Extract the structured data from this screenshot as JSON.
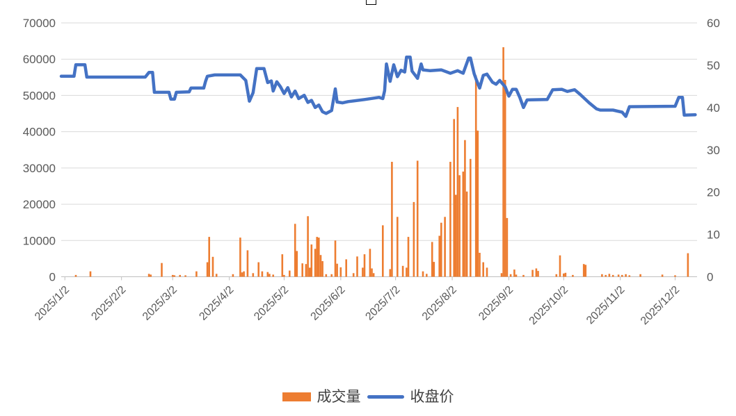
{
  "page": {
    "background": "#ffffff"
  },
  "chart_data": {
    "type": "combo-bar-line",
    "title": "",
    "grid": true,
    "legend_position": "bottom",
    "colors": {
      "bar": "#ED7D31",
      "line": "#4472C4",
      "gridline": "#D9D9D9",
      "axis_line": "#BFBFBF",
      "tick_text": "#595959",
      "legend_text": "#404040"
    },
    "legend": [
      {
        "label": "成交量",
        "type": "bar"
      },
      {
        "label": "收盘价",
        "type": "line"
      }
    ],
    "y_axis_left": {
      "min": 0,
      "max": 70000,
      "step": 10000,
      "labels": [
        "70000",
        "60000",
        "50000",
        "40000",
        "30000",
        "20000",
        "10000",
        "0"
      ]
    },
    "y_axis_right": {
      "min": 0,
      "max": 60,
      "step": 10,
      "labels": [
        "60",
        "50",
        "40",
        "30",
        "20",
        "10",
        "0"
      ]
    },
    "x_domain": [
      0,
      348
    ],
    "x_axis": {
      "ticks": [
        {
          "label": "2025/1/2",
          "day": 2
        },
        {
          "label": "2025/2/2",
          "day": 33
        },
        {
          "label": "2025/3/2",
          "day": 61
        },
        {
          "label": "2025/4/2",
          "day": 92
        },
        {
          "label": "2025/5/2",
          "day": 122
        },
        {
          "label": "2025/6/2",
          "day": 153
        },
        {
          "label": "2025/7/2",
          "day": 183
        },
        {
          "label": "2025/8/2",
          "day": 214
        },
        {
          "label": "2025/9/2",
          "day": 245
        },
        {
          "label": "2025/10/2",
          "day": 275
        },
        {
          "label": "2025/11/2",
          "day": 306
        },
        {
          "label": "2025/12/2",
          "day": 336
        }
      ]
    },
    "series": [
      {
        "name": "成交量",
        "type": "bar",
        "axis": "left",
        "points": [
          [
            8,
            500
          ],
          [
            16,
            1500
          ],
          [
            48,
            800
          ],
          [
            49,
            600
          ],
          [
            55,
            3800
          ],
          [
            61,
            500
          ],
          [
            62,
            400
          ],
          [
            65,
            500
          ],
          [
            68,
            400
          ],
          [
            74,
            1500
          ],
          [
            80,
            4000
          ],
          [
            81,
            11000
          ],
          [
            83,
            5500
          ],
          [
            85,
            800
          ],
          [
            94,
            700
          ],
          [
            98,
            10800
          ],
          [
            99,
            1200
          ],
          [
            100,
            1500
          ],
          [
            102,
            7300
          ],
          [
            105,
            1000
          ],
          [
            108,
            4000
          ],
          [
            110,
            1500
          ],
          [
            113,
            1300
          ],
          [
            114,
            800
          ],
          [
            116,
            600
          ],
          [
            121,
            6200
          ],
          [
            122,
            500
          ],
          [
            125,
            1700
          ],
          [
            128,
            14600
          ],
          [
            129,
            7100
          ],
          [
            132,
            3700
          ],
          [
            134,
            3500
          ],
          [
            135,
            16700
          ],
          [
            136,
            2500
          ],
          [
            137,
            8900
          ],
          [
            139,
            7700
          ],
          [
            140,
            11000
          ],
          [
            141,
            10800
          ],
          [
            142,
            6000
          ],
          [
            143,
            4300
          ],
          [
            145,
            700
          ],
          [
            148,
            700
          ],
          [
            150,
            10000
          ],
          [
            151,
            3600
          ],
          [
            153,
            2600
          ],
          [
            156,
            4800
          ],
          [
            160,
            1000
          ],
          [
            162,
            5600
          ],
          [
            165,
            2500
          ],
          [
            166,
            6200
          ],
          [
            169,
            7700
          ],
          [
            170,
            2300
          ],
          [
            171,
            1000
          ],
          [
            176,
            14200
          ],
          [
            180,
            2100
          ],
          [
            181,
            31700
          ],
          [
            184,
            16500
          ],
          [
            187,
            3000
          ],
          [
            189,
            2500
          ],
          [
            190,
            11000
          ],
          [
            193,
            20600
          ],
          [
            195,
            32000
          ],
          [
            198,
            1500
          ],
          [
            200,
            800
          ],
          [
            203,
            9600
          ],
          [
            204,
            4100
          ],
          [
            207,
            11300
          ],
          [
            208,
            14900
          ],
          [
            210,
            16500
          ],
          [
            213,
            31700
          ],
          [
            215,
            43500
          ],
          [
            216,
            22600
          ],
          [
            217,
            46800
          ],
          [
            218,
            28000
          ],
          [
            220,
            29000
          ],
          [
            221,
            37700
          ],
          [
            222,
            23500
          ],
          [
            224,
            32500
          ],
          [
            227,
            55500
          ],
          [
            228,
            40300
          ],
          [
            229,
            6600
          ],
          [
            231,
            4000
          ],
          [
            233,
            2500
          ],
          [
            241,
            1000
          ],
          [
            242,
            63300
          ],
          [
            243,
            54300
          ],
          [
            244,
            16200
          ],
          [
            246,
            700
          ],
          [
            248,
            2000
          ],
          [
            249,
            600
          ],
          [
            253,
            500
          ],
          [
            258,
            1900
          ],
          [
            260,
            2300
          ],
          [
            261,
            1600
          ],
          [
            271,
            700
          ],
          [
            273,
            5900
          ],
          [
            275,
            900
          ],
          [
            276,
            1100
          ],
          [
            280,
            500
          ],
          [
            286,
            3500
          ],
          [
            287,
            3300
          ],
          [
            296,
            700
          ],
          [
            298,
            500
          ],
          [
            300,
            800
          ],
          [
            302,
            500
          ],
          [
            305,
            600
          ],
          [
            307,
            500
          ],
          [
            309,
            700
          ],
          [
            311,
            400
          ],
          [
            317,
            700
          ],
          [
            329,
            600
          ],
          [
            336,
            400
          ],
          [
            343,
            6500
          ]
        ]
      },
      {
        "name": "收盘价",
        "type": "line",
        "axis": "right",
        "points": [
          [
            0,
            47.4
          ],
          [
            7,
            47.4
          ],
          [
            8,
            50.1
          ],
          [
            13,
            50.1
          ],
          [
            14,
            47.2
          ],
          [
            46,
            47.2
          ],
          [
            48,
            48.3
          ],
          [
            50,
            48.3
          ],
          [
            51,
            43.6
          ],
          [
            59,
            43.6
          ],
          [
            60,
            42.0
          ],
          [
            62,
            42.0
          ],
          [
            63,
            43.6
          ],
          [
            70,
            43.7
          ],
          [
            71,
            44.6
          ],
          [
            78,
            44.6
          ],
          [
            79,
            46.2
          ],
          [
            80,
            47.4
          ],
          [
            84,
            47.7
          ],
          [
            98,
            47.7
          ],
          [
            101,
            46.4
          ],
          [
            103,
            41.5
          ],
          [
            105,
            43.5
          ],
          [
            107,
            49.2
          ],
          [
            111,
            49.2
          ],
          [
            112,
            47.5
          ],
          [
            113,
            45.9
          ],
          [
            115,
            46.3
          ],
          [
            116,
            43.9
          ],
          [
            118,
            46.1
          ],
          [
            120,
            44.9
          ],
          [
            122,
            43.3
          ],
          [
            124,
            44.7
          ],
          [
            126,
            42.5
          ],
          [
            128,
            43.9
          ],
          [
            130,
            42.1
          ],
          [
            133,
            42.9
          ],
          [
            135,
            41.2
          ],
          [
            137,
            41.7
          ],
          [
            139,
            40.0
          ],
          [
            141,
            40.6
          ],
          [
            143,
            39.0
          ],
          [
            145,
            38.6
          ],
          [
            148,
            39.3
          ],
          [
            150,
            44.4
          ],
          [
            151,
            41.3
          ],
          [
            154,
            41.1
          ],
          [
            157,
            41.4
          ],
          [
            166,
            41.9
          ],
          [
            174,
            42.4
          ],
          [
            176,
            42.1
          ],
          [
            177,
            44.0
          ],
          [
            178,
            50.3
          ],
          [
            180,
            46.2
          ],
          [
            182,
            50.1
          ],
          [
            184,
            47.3
          ],
          [
            186,
            48.8
          ],
          [
            188,
            48.4
          ],
          [
            189,
            51.9
          ],
          [
            191,
            51.9
          ],
          [
            192,
            48.6
          ],
          [
            195,
            46.9
          ],
          [
            197,
            50.3
          ],
          [
            198,
            48.9
          ],
          [
            202,
            48.7
          ],
          [
            208,
            48.9
          ],
          [
            213,
            48.1
          ],
          [
            217,
            48.7
          ],
          [
            220,
            48.1
          ],
          [
            223,
            51.7
          ],
          [
            224,
            51.7
          ],
          [
            226,
            48.0
          ],
          [
            227,
            46.8
          ],
          [
            229,
            44.6
          ],
          [
            231,
            47.6
          ],
          [
            233,
            47.9
          ],
          [
            236,
            46.0
          ],
          [
            238,
            45.5
          ],
          [
            240,
            46.4
          ],
          [
            243,
            44.9
          ],
          [
            245,
            42.7
          ],
          [
            247,
            44.3
          ],
          [
            249,
            44.3
          ],
          [
            251,
            42.4
          ],
          [
            253,
            40.0
          ],
          [
            255,
            41.8
          ],
          [
            266,
            41.9
          ],
          [
            269,
            44.2
          ],
          [
            274,
            44.3
          ],
          [
            277,
            43.8
          ],
          [
            281,
            44.2
          ],
          [
            284,
            43.1
          ],
          [
            289,
            41.1
          ],
          [
            293,
            39.7
          ],
          [
            295,
            39.4
          ],
          [
            302,
            39.4
          ],
          [
            307,
            38.9
          ],
          [
            309,
            37.9
          ],
          [
            311,
            40.2
          ],
          [
            336,
            40.3
          ],
          [
            338,
            42.4
          ],
          [
            340,
            42.4
          ],
          [
            341,
            38.2
          ],
          [
            347,
            38.3
          ]
        ]
      }
    ]
  }
}
